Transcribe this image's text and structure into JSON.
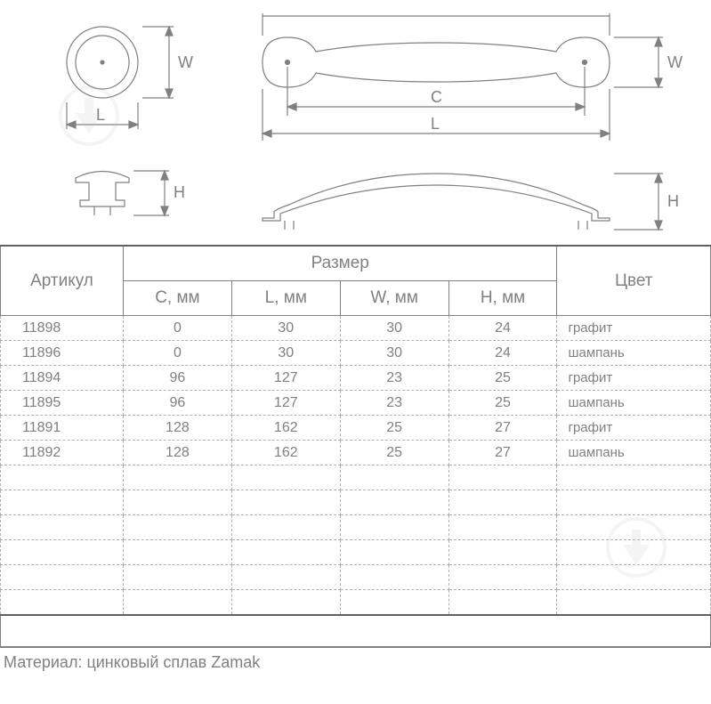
{
  "diagram": {
    "labels": {
      "L": "L",
      "W": "W",
      "C": "C",
      "H": "H"
    },
    "stroke": "#808080",
    "stroke_width": 1.2,
    "font_size": 18,
    "font_color": "#808080"
  },
  "table": {
    "header_article": "Артикул",
    "header_size": "Размер",
    "header_color": "Цвет",
    "columns": [
      "C, мм",
      "L, мм",
      "W, мм",
      "H, мм"
    ],
    "rows": [
      {
        "article": "11898",
        "c": "0",
        "l": "30",
        "w": "30",
        "h": "24",
        "color": "графит"
      },
      {
        "article": "11896",
        "c": "0",
        "l": "30",
        "w": "30",
        "h": "24",
        "color": "шампань"
      },
      {
        "article": "11894",
        "c": "96",
        "l": "127",
        "w": "23",
        "h": "25",
        "color": "графит"
      },
      {
        "article": "11895",
        "c": "96",
        "l": "127",
        "w": "23",
        "h": "25",
        "color": "шампань"
      },
      {
        "article": "11891",
        "c": "128",
        "l": "162",
        "w": "25",
        "h": "27",
        "color": "графит"
      },
      {
        "article": "11892",
        "c": "128",
        "l": "162",
        "w": "25",
        "h": "27",
        "color": "шампань"
      }
    ],
    "empty_rows": 6,
    "border_color": "#808080",
    "dash_color": "#b0b0b0",
    "text_color": "#808080"
  },
  "material_label": "Материал: цинковый сплав Zamak",
  "watermark": {
    "circle_color": "#cccccc",
    "arrow_color": "#cccccc"
  }
}
